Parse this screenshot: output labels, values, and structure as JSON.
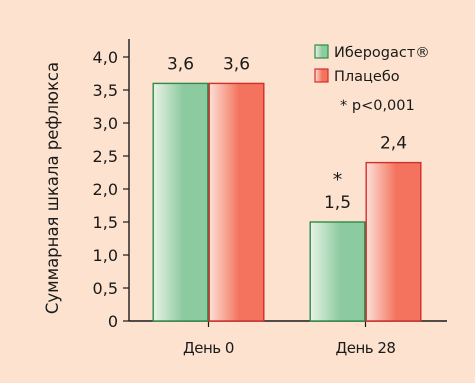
{
  "chart_data": {
    "type": "bar",
    "categories": [
      "День 0",
      "День 28"
    ],
    "series": [
      {
        "name": "Ибероgаст®",
        "values": [
          3.6,
          1.5
        ],
        "labels": [
          "3,6",
          "1,5"
        ],
        "colors": {
          "edge": "#2f8a49",
          "light": "#e9f3e6",
          "dark": "#8ccaa0"
        }
      },
      {
        "name": "Плацебо",
        "values": [
          3.6,
          2.4
        ],
        "labels": [
          "3,6",
          "2,4"
        ],
        "colors": {
          "edge": "#d32e2a",
          "light": "#fde0d6",
          "dark": "#f3735e"
        }
      }
    ],
    "title": "",
    "xlabel": "",
    "ylabel": "Суммарная шкала рефлюкса",
    "ylim": [
      0,
      4
    ],
    "yticks": [
      0,
      0.5,
      1,
      1.5,
      2,
      2.5,
      3,
      3.5,
      4
    ],
    "ytick_labels": [
      "0",
      "0,5",
      "1,0",
      "1,5",
      "2,0",
      "2,5",
      "3,0",
      "3,5",
      "4,0"
    ],
    "annotations": {
      "note": "* p<0,001",
      "significance_marker": "*"
    },
    "legend_position": "top-right",
    "grid": false,
    "colors": {
      "background": "#fde3cf",
      "axis": "#1a1a1a"
    }
  }
}
